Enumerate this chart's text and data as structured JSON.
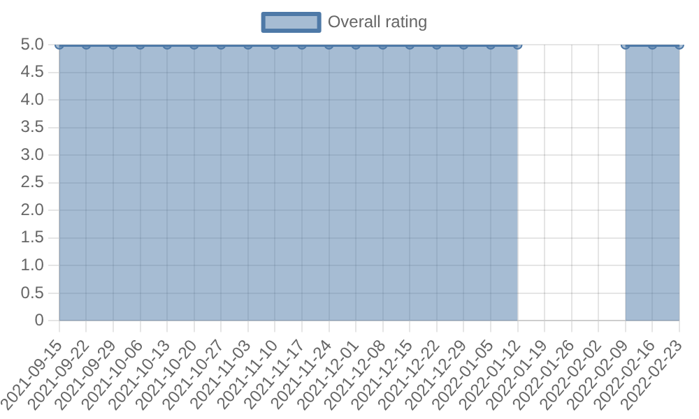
{
  "chart_data": {
    "type": "area",
    "categories": [
      "2021-09-15",
      "2021-09-22",
      "2021-09-29",
      "2021-10-06",
      "2021-10-13",
      "2021-10-20",
      "2021-10-27",
      "2021-11-03",
      "2021-11-10",
      "2021-11-17",
      "2021-11-24",
      "2021-12-01",
      "2021-12-08",
      "2021-12-15",
      "2021-12-22",
      "2021-12-29",
      "2022-01-05",
      "2022-01-12",
      "2022-01-19",
      "2022-01-26",
      "2022-02-02",
      "2022-02-09",
      "2022-02-16",
      "2022-02-23"
    ],
    "series": [
      {
        "name": "Overall rating",
        "color": "#4e79a7",
        "values": [
          5,
          5,
          5,
          5,
          5,
          5,
          5,
          5,
          5,
          5,
          5,
          5,
          5,
          5,
          5,
          5,
          5,
          5,
          null,
          null,
          null,
          5,
          5,
          5
        ]
      }
    ],
    "ylim": [
      0,
      5
    ],
    "yticks": [
      0,
      0.5,
      {
        "value": 1,
        "label": "1.0"
      },
      1.5,
      {
        "value": 2,
        "label": "2.0"
      },
      2.5,
      {
        "value": 3,
        "label": "3.0"
      },
      3.5,
      {
        "value": 4,
        "label": "4.0"
      },
      4.5,
      {
        "value": 5,
        "label": "5.0"
      }
    ],
    "grid": true,
    "legend": "top",
    "marker": "circle",
    "line_style": "solid"
  }
}
